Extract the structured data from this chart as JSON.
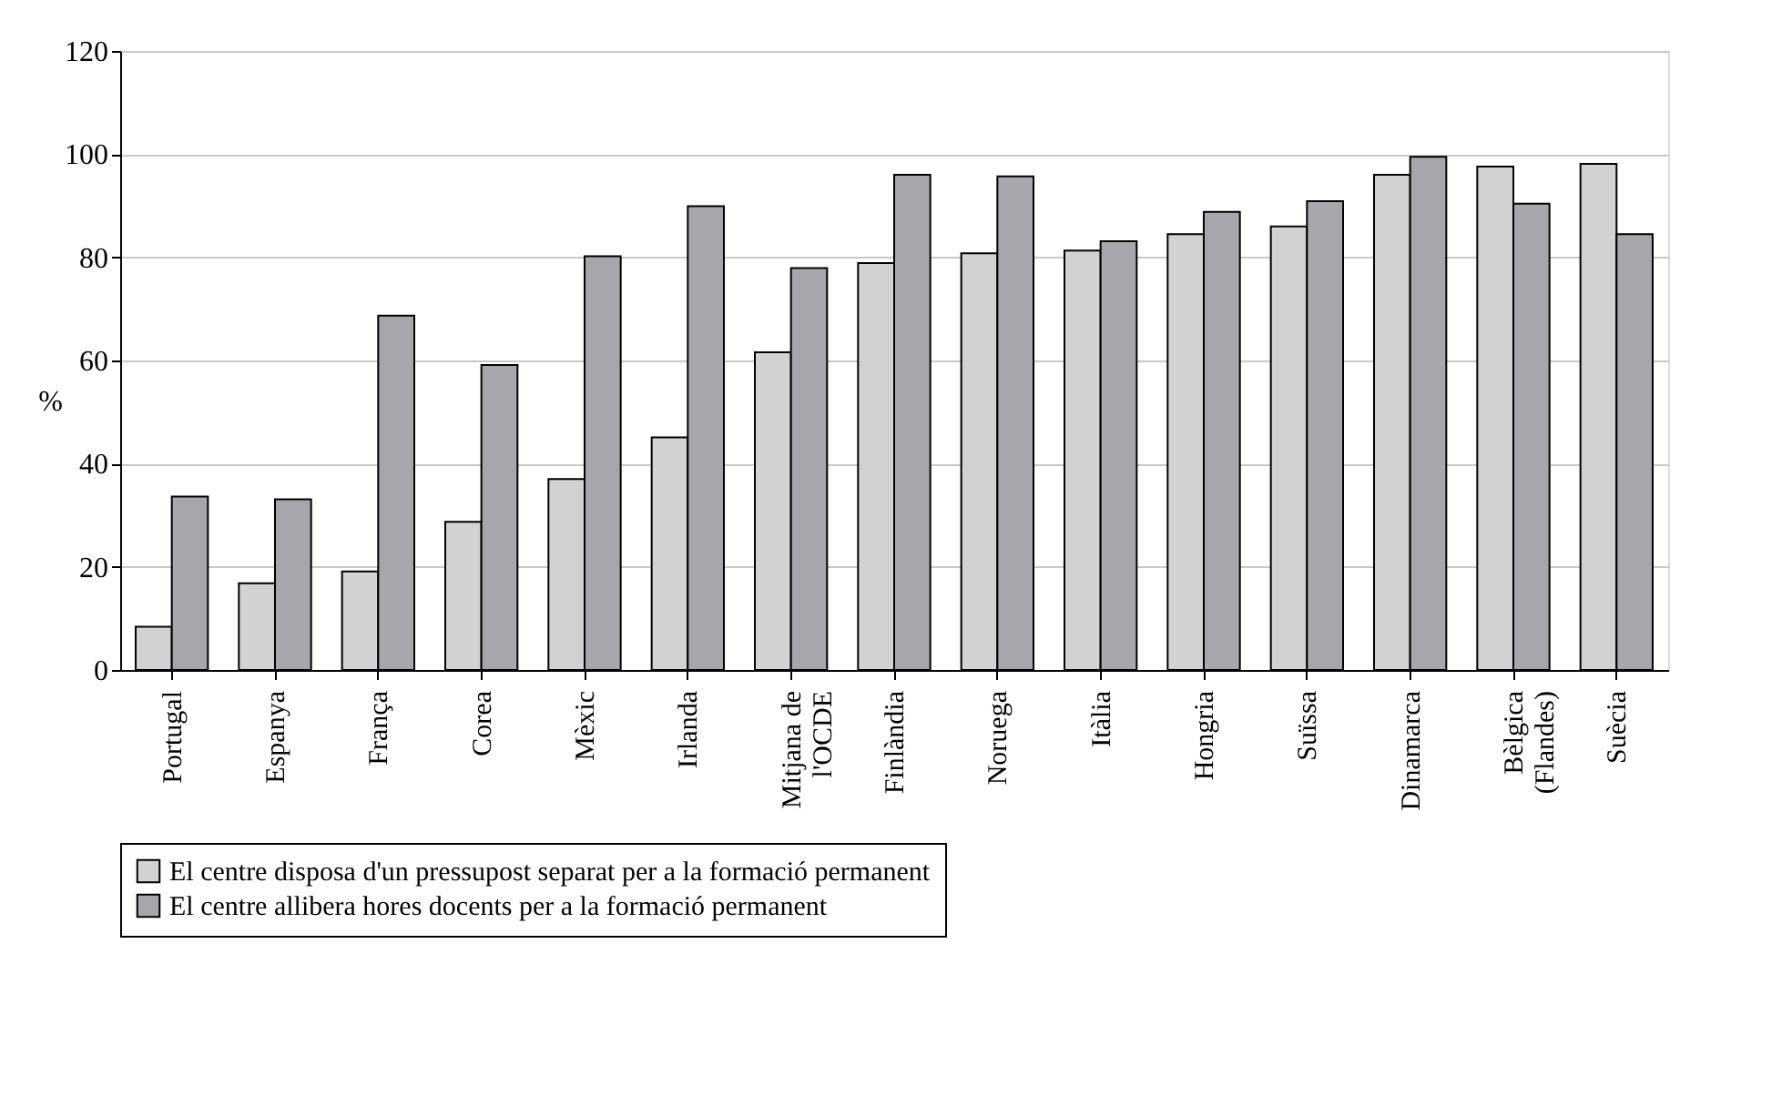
{
  "chart_data": {
    "type": "bar",
    "ylabel": "%",
    "categories": [
      "Portugal",
      "Espanya",
      "França",
      "Corea",
      "Mèxic",
      "Irlanda",
      "Mitjana de\nl'OCDE",
      "Finlàndia",
      "Noruega",
      "Itàlia",
      "Hongria",
      "Suïssa",
      "Dinamarca",
      "Bèlgica\n(Flandes)",
      "Suècia"
    ],
    "series": [
      {
        "name": "El centre disposa d'un pressupost separat per a la formació permanent",
        "color": "#d1d2d4",
        "values": [
          8.4,
          16.8,
          19.1,
          28.7,
          37.0,
          45.1,
          61.6,
          78.9,
          80.8,
          81.3,
          84.5,
          86.0,
          96.0,
          97.6,
          98.1
        ]
      },
      {
        "name": "El centre allibera hores docents per a la formació permanent",
        "color": "#a6a7aa",
        "values": [
          33.6,
          33.1,
          68.7,
          59.1,
          80.2,
          89.9,
          77.9,
          96.0,
          95.7,
          83.1,
          88.8,
          90.9,
          99.5,
          90.4,
          84.5
        ]
      }
    ],
    "ylim": [
      0,
      120
    ],
    "yticks": [
      0,
      20,
      40,
      60,
      80,
      100,
      120
    ],
    "grid": "y",
    "legend": "bottom"
  }
}
